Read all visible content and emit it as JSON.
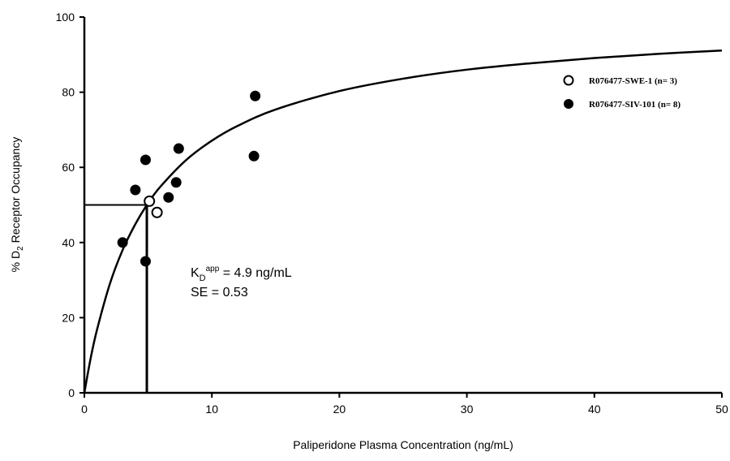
{
  "chart_data": {
    "type": "scatter",
    "x_label": "Paliperidone Plasma Concentration (ng/mL)",
    "y_label": [
      "% D",
      "2",
      " Receptor Occupancy"
    ],
    "xlim": [
      0,
      50
    ],
    "ylim": [
      0,
      100
    ],
    "xticks": [
      0,
      10,
      20,
      30,
      40,
      50
    ],
    "yticks": [
      0,
      20,
      40,
      60,
      80,
      100
    ],
    "series": [
      {
        "name": "R076477-SWE-1 (n= 3)",
        "marker": "open",
        "color": "#000000",
        "x": [
          5.1,
          5.7
        ],
        "values": [
          51,
          48
        ]
      },
      {
        "name": "R076477-SIV-101 (n= 8)",
        "marker": "filled",
        "color": "#000000",
        "x": [
          3.0,
          4.0,
          4.8,
          4.8,
          7.4,
          6.6,
          7.2,
          13.4,
          13.3
        ],
        "values": [
          40,
          54,
          62,
          35,
          65,
          52,
          56,
          79,
          63
        ]
      }
    ],
    "fit": {
      "color": "#000000",
      "x": [
        0,
        0.5,
        1,
        2,
        3,
        4,
        5,
        6,
        8,
        10,
        12,
        15,
        20,
        25,
        30,
        35,
        40,
        45,
        50
      ],
      "values": [
        0,
        9.3,
        16.9,
        29.0,
        38.0,
        44.9,
        50.5,
        55.0,
        62.0,
        67.1,
        71.0,
        75.4,
        80.3,
        83.6,
        86.0,
        87.7,
        89.1,
        90.2,
        91.1
      ]
    },
    "reference": {
      "x": 4.9,
      "y": 50
    },
    "annotation": {
      "kd": [
        "K",
        "D",
        "app",
        " = 4.9 ng/mL"
      ],
      "se": "SE = 0.53"
    }
  }
}
